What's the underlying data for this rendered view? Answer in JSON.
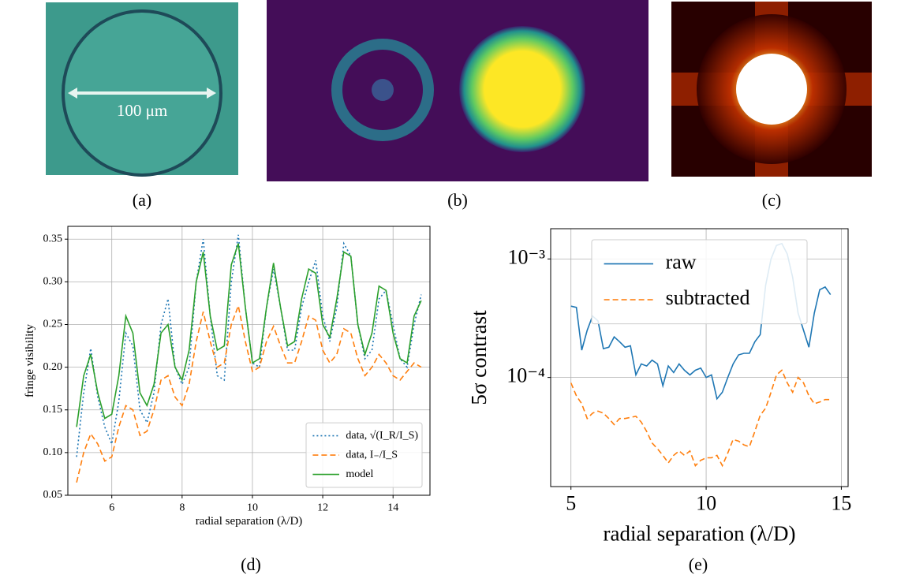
{
  "panels": {
    "a": {
      "scale_label": "100 μm",
      "caption": "(a)"
    },
    "b": {
      "caption": "(b)"
    },
    "c": {
      "caption": "(c)"
    },
    "d": {
      "caption": "(d)"
    },
    "e": {
      "caption": "(e)"
    }
  },
  "chart_data": [
    {
      "type": "line",
      "x_label": "radial separation (λ/D)",
      "y_label": "fringe visibility",
      "x": [
        5.0,
        5.2,
        5.4,
        5.6,
        5.8,
        6.0,
        6.2,
        6.4,
        6.6,
        6.8,
        7.0,
        7.2,
        7.4,
        7.6,
        7.8,
        8.0,
        8.2,
        8.4,
        8.6,
        8.8,
        9.0,
        9.2,
        9.4,
        9.6,
        9.8,
        10.0,
        10.2,
        10.4,
        10.6,
        10.8,
        11.0,
        11.2,
        11.4,
        11.6,
        11.8,
        12.0,
        12.2,
        12.4,
        12.6,
        12.8,
        13.0,
        13.2,
        13.4,
        13.6,
        13.8,
        14.0,
        14.2,
        14.4,
        14.6,
        14.8
      ],
      "series": [
        {
          "name": "data, √(I_R/I_S)",
          "color": "#1f77b4",
          "linestyle": "dotted",
          "values": [
            0.095,
            0.17,
            0.222,
            0.165,
            0.13,
            0.11,
            0.16,
            0.24,
            0.225,
            0.15,
            0.135,
            0.17,
            0.25,
            0.28,
            0.2,
            0.18,
            0.2,
            0.3,
            0.35,
            0.26,
            0.19,
            0.185,
            0.3,
            0.355,
            0.27,
            0.205,
            0.2,
            0.27,
            0.315,
            0.27,
            0.22,
            0.22,
            0.27,
            0.3,
            0.325,
            0.26,
            0.23,
            0.27,
            0.345,
            0.33,
            0.25,
            0.21,
            0.22,
            0.28,
            0.29,
            0.25,
            0.21,
            0.2,
            0.25,
            0.285
          ]
        },
        {
          "name": "data, I₋/I_S",
          "color": "#ff7f0e",
          "linestyle": "dashed",
          "values": [
            0.065,
            0.1,
            0.122,
            0.11,
            0.09,
            0.095,
            0.13,
            0.155,
            0.15,
            0.12,
            0.125,
            0.15,
            0.185,
            0.19,
            0.165,
            0.155,
            0.18,
            0.23,
            0.265,
            0.23,
            0.2,
            0.205,
            0.25,
            0.272,
            0.23,
            0.195,
            0.2,
            0.23,
            0.248,
            0.225,
            0.205,
            0.205,
            0.23,
            0.26,
            0.255,
            0.22,
            0.205,
            0.215,
            0.245,
            0.24,
            0.21,
            0.19,
            0.2,
            0.215,
            0.205,
            0.19,
            0.185,
            0.195,
            0.205,
            0.2
          ]
        },
        {
          "name": "model",
          "color": "#2ca02c",
          "linestyle": "solid",
          "values": [
            0.13,
            0.19,
            0.215,
            0.17,
            0.14,
            0.145,
            0.19,
            0.26,
            0.24,
            0.17,
            0.155,
            0.18,
            0.24,
            0.25,
            0.2,
            0.185,
            0.22,
            0.3,
            0.335,
            0.26,
            0.22,
            0.225,
            0.32,
            0.345,
            0.27,
            0.205,
            0.21,
            0.27,
            0.322,
            0.27,
            0.225,
            0.23,
            0.28,
            0.315,
            0.31,
            0.25,
            0.235,
            0.28,
            0.335,
            0.33,
            0.25,
            0.215,
            0.24,
            0.295,
            0.29,
            0.24,
            0.21,
            0.205,
            0.26,
            0.278
          ]
        }
      ],
      "xlim": [
        4.75,
        15.05
      ],
      "ylim": [
        0.05,
        0.365
      ],
      "xticks": [
        6,
        8,
        10,
        12,
        14
      ],
      "yticks": [
        0.05,
        {
          "value": 0.1,
          "label": "0.10"
        },
        0.15,
        {
          "value": 0.2,
          "label": "0.20"
        },
        0.25,
        {
          "value": 0.3,
          "label": "0.30"
        },
        0.35
      ],
      "grid": true,
      "log_y": false,
      "legend": "lower right"
    },
    {
      "type": "line",
      "x_label": "radial separation (λ/D)",
      "y_label": "5σ contrast",
      "x": [
        5.0,
        5.2,
        5.4,
        5.6,
        5.8,
        6.0,
        6.2,
        6.4,
        6.6,
        6.8,
        7.0,
        7.2,
        7.4,
        7.6,
        7.8,
        8.0,
        8.2,
        8.4,
        8.6,
        8.8,
        9.0,
        9.2,
        9.4,
        9.6,
        9.8,
        10.0,
        10.2,
        10.4,
        10.6,
        10.8,
        11.0,
        11.2,
        11.4,
        11.6,
        11.8,
        12.0,
        12.2,
        12.4,
        12.6,
        12.8,
        13.0,
        13.2,
        13.4,
        13.6,
        13.8,
        14.0,
        14.2,
        14.4,
        14.6
      ],
      "series": [
        {
          "name": "raw",
          "color": "#1f77b4",
          "linestyle": "solid",
          "values": [
            0.0004,
            0.00039,
            0.00017,
            0.00025,
            0.00033,
            0.0003,
            0.000175,
            0.00018,
            0.00022,
            0.0002,
            0.00018,
            0.000185,
            0.000105,
            0.00013,
            0.000125,
            0.00014,
            0.00013,
            8.5e-05,
            0.000125,
            0.00011,
            0.00013,
            0.000115,
            0.000105,
            0.000115,
            0.00012,
            0.0001,
            0.000105,
            6.6e-05,
            7.5e-05,
            0.0001,
            0.00013,
            0.000155,
            0.00016,
            0.00016,
            0.0002,
            0.00023,
            0.0006,
            0.001,
            0.0013,
            0.00135,
            0.0011,
            0.0007,
            0.00035,
            0.00025,
            0.00018,
            0.00035,
            0.00055,
            0.00058,
            0.0005
          ]
        },
        {
          "name": "subtracted",
          "color": "#ff7f0e",
          "linestyle": "dashed",
          "values": [
            9e-05,
            7e-05,
            6e-05,
            4.5e-05,
            5e-05,
            5.2e-05,
            5e-05,
            4.5e-05,
            4e-05,
            4.5e-05,
            4.5e-05,
            4.6e-05,
            4.7e-05,
            4.2e-05,
            3.5e-05,
            2.8e-05,
            2.5e-05,
            2.2e-05,
            1.9e-05,
            2.2e-05,
            2.4e-05,
            2.2e-05,
            2.4e-05,
            1.8e-05,
            2e-05,
            2.1e-05,
            2.1e-05,
            2.2e-05,
            1.8e-05,
            2.3e-05,
            3e-05,
            2.9e-05,
            2.7e-05,
            2.6e-05,
            3.5e-05,
            4.8e-05,
            5.5e-05,
            7.5e-05,
            0.000105,
            0.000115,
            9e-05,
            7.5e-05,
            0.0001,
            9e-05,
            7e-05,
            6e-05,
            6.2e-05,
            6.5e-05,
            6.5e-05
          ]
        }
      ],
      "xlim": [
        4.25,
        15.25
      ],
      "ylim": [
        1.2e-05,
        0.0018
      ],
      "xticks": [
        5,
        10,
        15
      ],
      "yticks": [
        {
          "value": 0.0001,
          "label": "10⁻⁴"
        },
        {
          "value": 0.001,
          "label": "10⁻³"
        }
      ],
      "grid": true,
      "log_y": true,
      "legend": "upper center"
    }
  ]
}
